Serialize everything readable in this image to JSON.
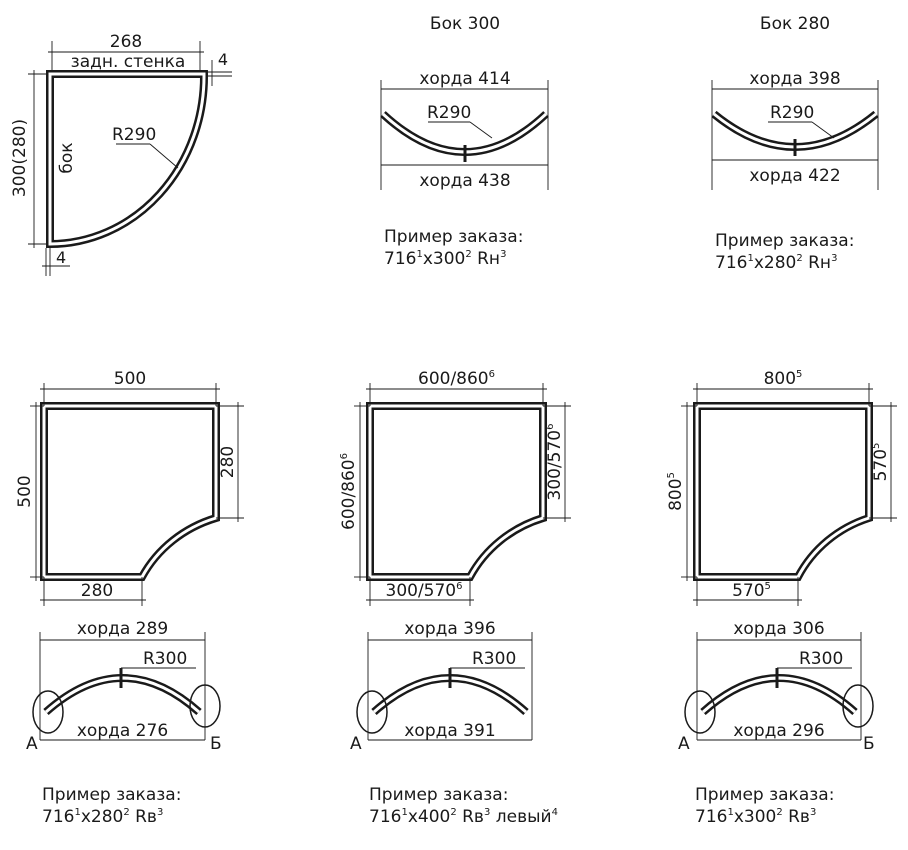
{
  "top": {
    "corner": {
      "width_label": "268",
      "back_wall_label": "задн. стенка",
      "thickness_top": "4",
      "height_label": "300(280)",
      "side_label": "бок",
      "radius_label": "R290",
      "thickness_bottom": "4"
    },
    "side300": {
      "title": "Бок 300",
      "chord_top": "хорда 414",
      "radius": "R290",
      "chord_bottom": "хорда 438",
      "order_caption": "Пример заказа:",
      "order_a": "716",
      "order_a_sup": "1",
      "order_b": "x300",
      "order_b_sup": "2",
      "order_c": " Rн",
      "order_c_sup": "3"
    },
    "side280": {
      "title": "Бок 280",
      "chord_top": "хорда 398",
      "radius": "R290",
      "chord_bottom": "хорда 422",
      "order_caption": "Пример заказа:",
      "order_a": "716",
      "order_a_sup": "1",
      "order_b": "x280",
      "order_b_sup": "2",
      "order_c": " Rн",
      "order_c_sup": "3"
    }
  },
  "bottom": [
    {
      "top_dim": "500",
      "top_dim_sup": "",
      "left_dim": "500",
      "left_dim_sup": "",
      "right_dim": "280",
      "right_dim_sup": "",
      "bottom_dim": "280",
      "bottom_dim_sup": "",
      "chord_top": "хорда 289",
      "radius": "R300",
      "chord_bottom": "хорда 276",
      "end_a": "А",
      "end_b": "Б",
      "order_caption": "Пример заказа:",
      "order_a": "716",
      "order_a_sup": "1",
      "order_b": "x280",
      "order_b_sup": "2",
      "order_c": " Rв",
      "order_c_sup": "3",
      "order_d": "",
      "order_d_sup": ""
    },
    {
      "top_dim": "600/860",
      "top_dim_sup": "6",
      "left_dim": "600/860",
      "left_dim_sup": "6",
      "right_dim": "300/570",
      "right_dim_sup": "6",
      "bottom_dim": "300/570",
      "bottom_dim_sup": "6",
      "chord_top": "хорда 396",
      "radius": "R300",
      "chord_bottom": "хорда 391",
      "end_a": "А",
      "end_b": "",
      "order_caption": "Пример заказа:",
      "order_a": "716",
      "order_a_sup": "1",
      "order_b": "x400",
      "order_b_sup": "2",
      "order_c": " Rв",
      "order_c_sup": "3",
      "order_d": " левый",
      "order_d_sup": "4"
    },
    {
      "top_dim": "800",
      "top_dim_sup": "5",
      "left_dim": "800",
      "left_dim_sup": "5",
      "right_dim": "570",
      "right_dim_sup": "5",
      "bottom_dim": "570",
      "bottom_dim_sup": "5",
      "chord_top": "хорда 306",
      "radius": "R300",
      "chord_bottom": "хорда 296",
      "end_a": "А",
      "end_b": "Б",
      "order_caption": "Пример заказа:",
      "order_a": "716",
      "order_a_sup": "1",
      "order_b": "x300",
      "order_b_sup": "2",
      "order_c": " Rв",
      "order_c_sup": "3",
      "order_d": "",
      "order_d_sup": ""
    }
  ]
}
